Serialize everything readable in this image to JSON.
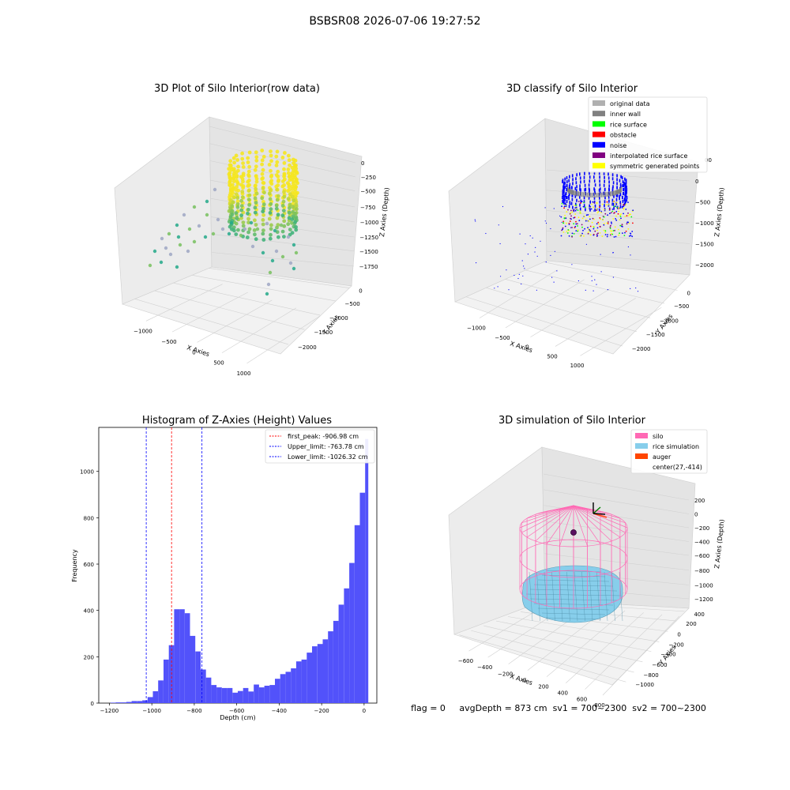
{
  "suptitle": "BSBSR08 2026-07-06 19:27:52",
  "status_line": "flag = 0     avgDepth = 873 cm  sv1 = 700~2300  sv2 = 700~2300",
  "chart_data": [
    {
      "type": "scatter",
      "subtype": "3d",
      "title": "3D Plot of Silo Interior(row data)",
      "xlabel": "X Axies",
      "ylabel": "Y Axies",
      "zlabel": "Z Axies (Depth)",
      "xticks": [
        "−1000",
        "−500",
        "0",
        "500",
        "1000"
      ],
      "yticks": [
        "0",
        "−500",
        "−1000",
        "−1500",
        "−2000"
      ],
      "zticks": [
        "0",
        "−250",
        "−500",
        "−750",
        "−1000",
        "−1250",
        "−1500",
        "−1750"
      ],
      "xlim": [
        -1300,
        1300
      ],
      "ylim": [
        -2100,
        100
      ],
      "zlim": [
        -2000,
        100
      ],
      "colormap": "viridis",
      "colors": {
        "high": "#f5e51f",
        "mid": "#24a98a",
        "low": "#9fa7c4"
      }
    },
    {
      "type": "scatter",
      "subtype": "3d",
      "title": "3D classify of Silo Interior",
      "xlabel": "X Axies",
      "ylabel": "Y Axies",
      "zlabel": "Z Axies (Depth)",
      "xticks": [
        "−1000",
        "−500",
        "0",
        "500",
        "1000"
      ],
      "yticks": [
        "0",
        "−500",
        "−1000",
        "−1500",
        "−2000"
      ],
      "zticks": [
        "0",
        "−500",
        "−1000",
        "−1500",
        "−2000"
      ],
      "zticks_partial_top": "00",
      "legend": [
        {
          "label": "original data",
          "color": "#b0b0b0"
        },
        {
          "label": "inner wall",
          "color": "#808080"
        },
        {
          "label": "rice surface",
          "color": "#00ff00"
        },
        {
          "label": "obstacle",
          "color": "#ff0000"
        },
        {
          "label": "noise",
          "color": "#0000ff"
        },
        {
          "label": "interpolated rice surface",
          "color": "#800080"
        },
        {
          "label": "symmetric generated points",
          "color": "#ffff00"
        }
      ],
      "legend_position": "top-right"
    },
    {
      "type": "bar",
      "subtype": "histogram",
      "title": "Histogram of Z-Axies (Height) Values",
      "xlabel": "Depth (cm)",
      "ylabel": "Frequency",
      "xlim": [
        -1250,
        60
      ],
      "ylim": [
        0,
        1190
      ],
      "xticks": [
        -1200,
        -1000,
        -800,
        -600,
        -400,
        -200,
        0
      ],
      "xtick_labels": [
        "−1200",
        "−1000",
        "−800",
        "−600",
        "−400",
        "−200",
        "0"
      ],
      "yticks": [
        0,
        200,
        400,
        600,
        800,
        1000
      ],
      "yticks_labels": [
        "0",
        "200",
        "400",
        "600",
        "800",
        "1000"
      ],
      "bar_color": "#5252fa",
      "bins": [
        [
          -1195,
          -1170,
          2
        ],
        [
          -1170,
          -1145,
          3
        ],
        [
          -1145,
          -1120,
          3
        ],
        [
          -1120,
          -1095,
          5
        ],
        [
          -1095,
          -1070,
          9
        ],
        [
          -1070,
          -1045,
          9
        ],
        [
          -1045,
          -1020,
          12
        ],
        [
          -1020,
          -995,
          26
        ],
        [
          -995,
          -970,
          51
        ],
        [
          -970,
          -945,
          98
        ],
        [
          -945,
          -920,
          188
        ],
        [
          -920,
          -895,
          250
        ],
        [
          -895,
          -870,
          405
        ],
        [
          -870,
          -845,
          405
        ],
        [
          -845,
          -820,
          388
        ],
        [
          -820,
          -795,
          290
        ],
        [
          -795,
          -770,
          223
        ],
        [
          -770,
          -745,
          145
        ],
        [
          -745,
          -720,
          110
        ],
        [
          -720,
          -695,
          78
        ],
        [
          -695,
          -670,
          68
        ],
        [
          -670,
          -645,
          65
        ],
        [
          -645,
          -620,
          65
        ],
        [
          -620,
          -595,
          45
        ],
        [
          -595,
          -570,
          52
        ],
        [
          -570,
          -545,
          65
        ],
        [
          -545,
          -520,
          50
        ],
        [
          -520,
          -495,
          80
        ],
        [
          -495,
          -470,
          68
        ],
        [
          -470,
          -445,
          75
        ],
        [
          -445,
          -420,
          78
        ],
        [
          -420,
          -395,
          105
        ],
        [
          -395,
          -370,
          125
        ],
        [
          -370,
          -345,
          135
        ],
        [
          -345,
          -320,
          150
        ],
        [
          -320,
          -295,
          180
        ],
        [
          -295,
          -270,
          188
        ],
        [
          -270,
          -245,
          218
        ],
        [
          -245,
          -220,
          245
        ],
        [
          -220,
          -195,
          255
        ],
        [
          -195,
          -170,
          275
        ],
        [
          -170,
          -145,
          310
        ],
        [
          -145,
          -120,
          355
        ],
        [
          -120,
          -95,
          425
        ],
        [
          -95,
          -70,
          495
        ],
        [
          -70,
          -45,
          605
        ],
        [
          -45,
          -20,
          768
        ],
        [
          -20,
          5,
          908
        ],
        [
          5,
          20,
          1140
        ]
      ],
      "lines": [
        {
          "label": "first_peak: -906.98 cm",
          "value": -906.98,
          "color": "#ff0000"
        },
        {
          "label": "Upper_limit: -763.78 cm",
          "value": -763.78,
          "color": "#0000ff"
        },
        {
          "label": "Lower_limit: -1026.32 cm",
          "value": -1026.32,
          "color": "#0000ff"
        }
      ],
      "legend_position": "top-right"
    },
    {
      "type": "scatter",
      "subtype": "3d",
      "title": "3D simulation of Silo Interior",
      "xlabel": "X Axies",
      "ylabel": "Y Axies",
      "zlabel": "Z Axies (Depth)",
      "xticks": [
        "−600",
        "−400",
        "−200",
        "0",
        "200",
        "400",
        "600",
        "800"
      ],
      "yticks": [
        "400",
        "200",
        "0",
        "−200",
        "−400",
        "−600",
        "−800",
        "−1000"
      ],
      "zticks": [
        "200",
        "0",
        "−200",
        "−400",
        "−600",
        "−800",
        "−1000",
        "−1200"
      ],
      "legend": [
        {
          "label": "silo",
          "color": "#ff69b4"
        },
        {
          "label": "rice simulation",
          "color": "#87ceeb"
        },
        {
          "label": "auger",
          "color": "#ff4500"
        },
        {
          "label": "center(27,-414)",
          "color": ""
        }
      ],
      "legend_position": "top-right",
      "center": [
        27,
        -414
      ]
    }
  ]
}
